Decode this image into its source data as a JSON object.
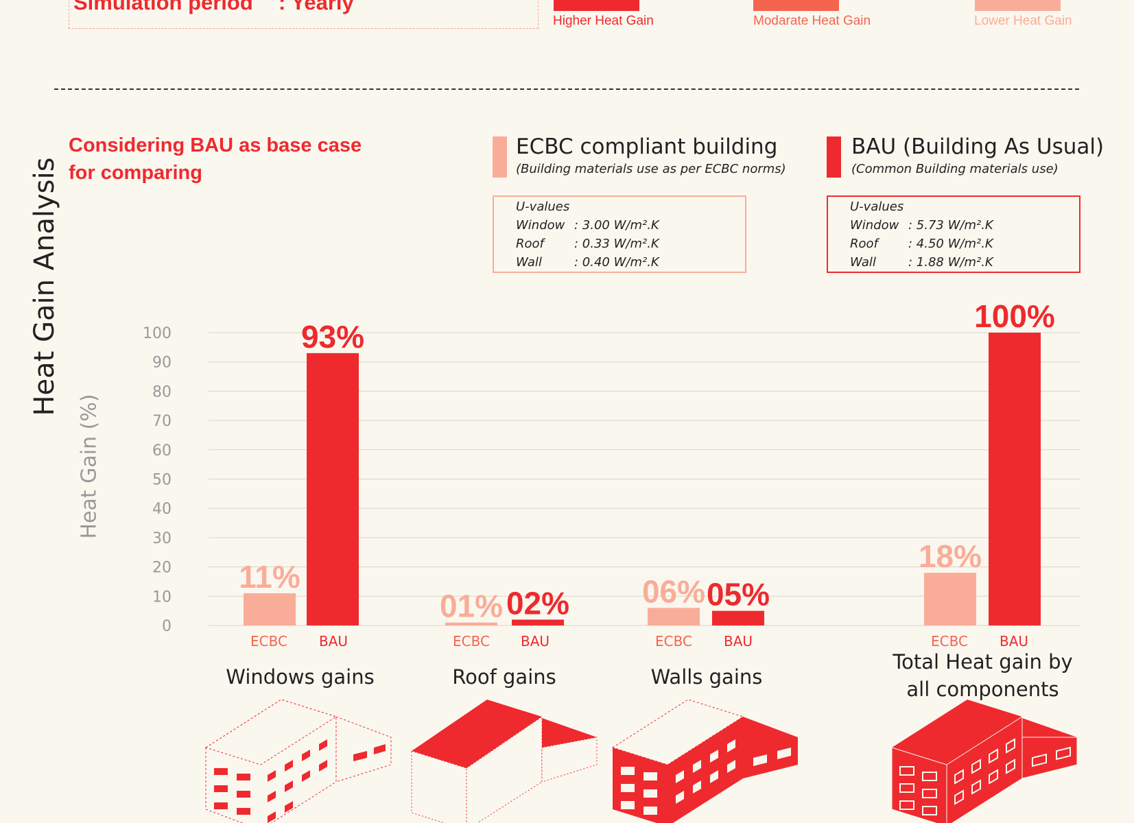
{
  "simulation": {
    "label": "Simulation period",
    "value": ": Yearly"
  },
  "heat_legend": [
    {
      "label": "Higher Heat Gain",
      "color": "#ee2a2e"
    },
    {
      "label": "Modarate Heat Gain",
      "color": "#f5644f"
    },
    {
      "label": "Lower Heat Gain",
      "color": "#f9ad98"
    }
  ],
  "title": "Heat Gain Analysis",
  "heading": [
    "Considering BAU as base case",
    "for comparing"
  ],
  "ecbc": {
    "title": "ECBC compliant building",
    "subtitle": "(Building materials use as per ECBC norms)",
    "color": "#f9ad98",
    "uvalues_label": "U-values",
    "uvalues": [
      {
        "k": "Window",
        "v": ": 3.00 W/m².K"
      },
      {
        "k": "Roof",
        "v": ":  0.33 W/m².K"
      },
      {
        "k": "Wall",
        "v": ": 0.40 W/m².K"
      }
    ]
  },
  "bau": {
    "title": "BAU (Building As Usual)",
    "subtitle": "(Common Building materials use)",
    "color": "#ee2a2e",
    "uvalues_label": "U-values",
    "uvalues": [
      {
        "k": "Window",
        "v": ": 5.73 W/m².K"
      },
      {
        "k": "Roof",
        "v": ":  4.50 W/m².K"
      },
      {
        "k": "Wall",
        "v": ": 1.88 W/m².K"
      }
    ]
  },
  "chart_data": {
    "type": "bar",
    "ylabel": "Heat Gain (%)",
    "ylim": [
      0,
      100
    ],
    "yticks": [
      0,
      10,
      20,
      30,
      40,
      50,
      60,
      70,
      80,
      90,
      100
    ],
    "grid": true,
    "categories": [
      "Windows gains",
      "Roof gains",
      "Walls gains",
      "Total Heat gain by all components"
    ],
    "series": [
      {
        "name": "ECBC",
        "color": "#f9ad98",
        "values": [
          11,
          1,
          6,
          18
        ],
        "labels": [
          "11%",
          "01%",
          "06%",
          "18%"
        ]
      },
      {
        "name": "BAU",
        "color": "#ee2a2e",
        "values": [
          93,
          2,
          5,
          100
        ],
        "labels": [
          "93%",
          "02%",
          "05%",
          "100%"
        ]
      }
    ]
  },
  "group_labels": [
    [
      "Windows gains"
    ],
    [
      "Roof gains"
    ],
    [
      "Walls gains"
    ],
    [
      "Total Heat gain by",
      "all components"
    ]
  ]
}
